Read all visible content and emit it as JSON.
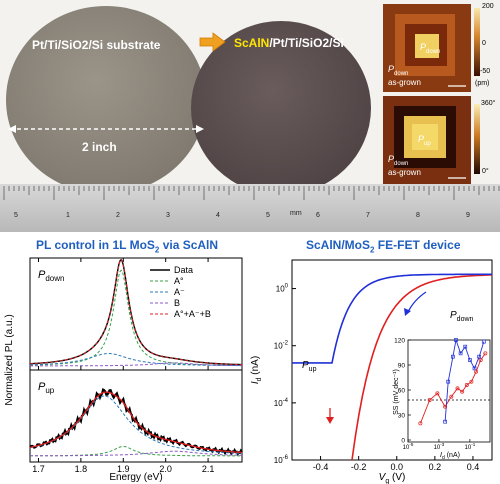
{
  "photo": {
    "wafer1_label": "Pt/Ti/SiO2/Si substrate",
    "wafer1_size": "2 inch",
    "wafer2_label_hl": "ScAlN",
    "wafer2_label_rest": "/Pt/Ti/SiO2/Si",
    "pfm1": {
      "label": "P",
      "label_sub": "down",
      "corner": "P",
      "corner_sub": "down",
      "state": "as-grown",
      "scale": [
        "200",
        "0",
        "-50"
      ],
      "unit": "(pm)",
      "color_top": "#f0d690",
      "color_bottom": "#5a1a05"
    },
    "pfm2": {
      "label": "P",
      "label_sub": "up",
      "corner": "P",
      "corner_sub": "down",
      "state": "as-grown",
      "scale": [
        "360°",
        "0°"
      ],
      "color_top": "#f6e090",
      "color_bottom": "#301004"
    },
    "ruler": {
      "mm": "mm",
      "numbers": [
        "5",
        "1",
        "2",
        "3",
        "4",
        "5",
        "6",
        "7",
        "8",
        "9"
      ]
    }
  },
  "left_panel": {
    "title_pre": "PL control in 1L MoS",
    "title_sub": "2",
    "title_post": " via ScAlN",
    "ylabel": "Normalized PL (a.u.)",
    "xlabel": "Energy (eV)",
    "xticks": [
      "1.7",
      "1.8",
      "1.9",
      "2.0",
      "2.1"
    ],
    "top_label": "P",
    "top_label_sub": "down",
    "bottom_label": "P",
    "bottom_label_sub": "up",
    "legend": [
      {
        "label": "Data",
        "color": "#000000",
        "dash": "none"
      },
      {
        "label": "A°",
        "color": "#3aa04a",
        "dash": "3,2"
      },
      {
        "label": "A⁻",
        "color": "#2a7ab8",
        "dash": "3,2"
      },
      {
        "label": "B",
        "color": "#8a5ac8",
        "dash": "3,2"
      },
      {
        "label": "A°+A⁻+B",
        "color": "#e02020",
        "dash": "3,2"
      }
    ]
  },
  "right_panel": {
    "title_pre": "ScAlN/MoS",
    "title_sub": "2",
    "title_post": " FE-FET device",
    "ylabel_main": "I",
    "ylabel_sub": "d",
    "ylabel_unit": " (nA)",
    "xlabel_main": "V",
    "xlabel_sub": "g",
    "xlabel_unit": " (V)",
    "xticks": [
      "-0.4",
      "-0.2",
      "0.0",
      "0.2",
      "0.4"
    ],
    "yticks": [
      {
        "base": "10",
        "exp": "0"
      },
      {
        "base": "10",
        "exp": "-2"
      },
      {
        "base": "10",
        "exp": "-4"
      },
      {
        "base": "10",
        "exp": "-6"
      }
    ],
    "label_up": "P",
    "label_up_sub": "up",
    "label_down": "P",
    "label_down_sub": "down",
    "inset": {
      "ylabel": "SS (mV dec⁻¹)",
      "xlabel_main": "I",
      "xlabel_sub": "d",
      "xlabel_unit": " (nA)",
      "yticks": [
        "0",
        "30",
        "60",
        "90",
        "120"
      ],
      "xticks": [
        {
          "base": "10",
          "exp": "-5"
        },
        {
          "base": "10",
          "exp": "-3"
        },
        {
          "base": "10",
          "exp": "-1"
        }
      ]
    }
  }
}
